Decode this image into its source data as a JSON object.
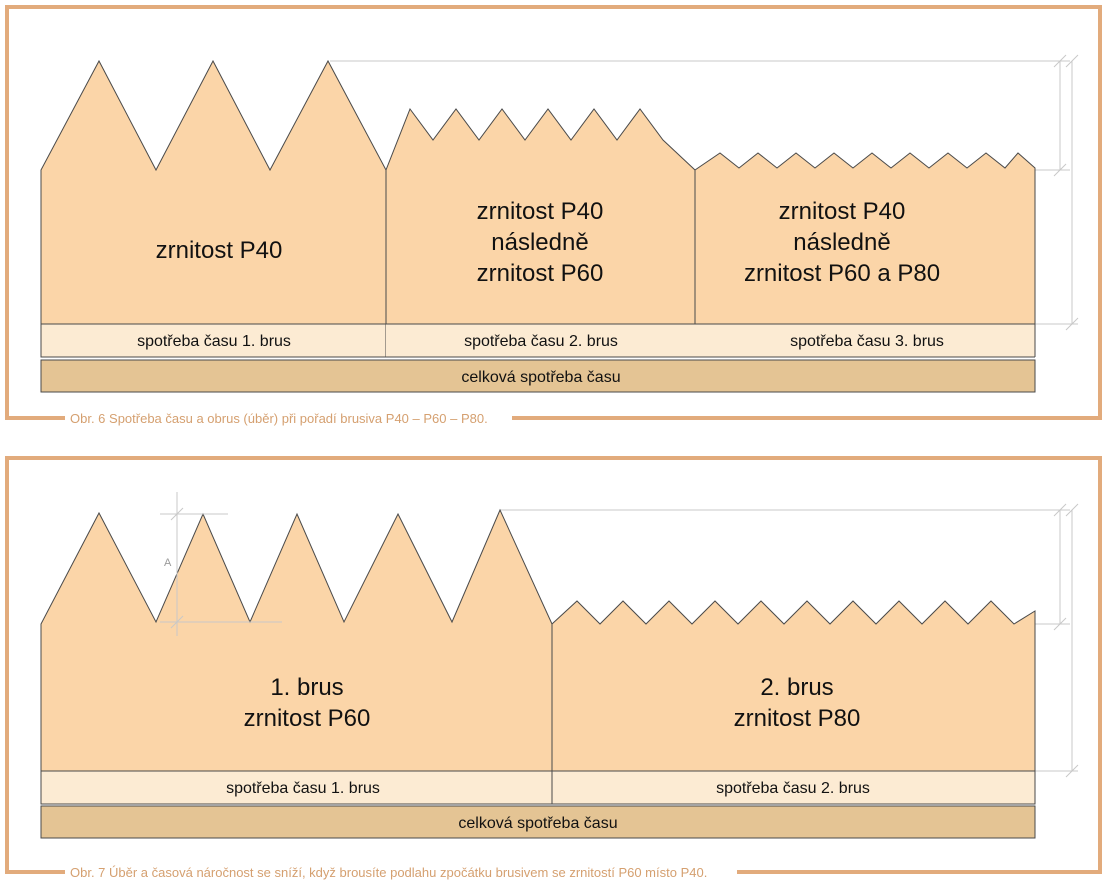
{
  "colors": {
    "frame": "#e2ab7c",
    "block": "#fbd5a8",
    "block_stroke": "#4a4a4a",
    "bar_light": "#fcebd3",
    "bar_dark": "#e4c494",
    "caption_text": "#d5a070",
    "dimension_line": "#c8c8c8"
  },
  "figure6": {
    "blocks": [
      {
        "lines": [
          "zrnitost P40"
        ]
      },
      {
        "lines": [
          "zrnitost P40",
          "následně",
          "zrnitost P60"
        ]
      },
      {
        "lines": [
          "zrnitost P40",
          "následně",
          "zrnitost P60 a P80"
        ]
      }
    ],
    "time_bars": [
      "spotřeba času 1. brus",
      "spotřeba času 2. brus",
      "spotřeba času 3. brus"
    ],
    "total_bar": "celková spotřeba času",
    "caption": "Obr. 6  Spotřeba času a obrus (úběr) při pořadí brusiva P40 – P60 – P80."
  },
  "figure7": {
    "blocks": [
      {
        "lines": [
          "1. brus",
          "zrnitost P60"
        ]
      },
      {
        "lines": [
          "2. brus",
          "zrnitost P80"
        ]
      }
    ],
    "dimension_label": "A",
    "time_bars": [
      "spotřeba času 1. brus",
      "spotřeba času 2. brus"
    ],
    "total_bar": "celková spotřeba času",
    "caption": "Obr. 7  Úběr a časová náročnost se sníží, když brousíte podlahu zpočátku brusivem se zrnitostí P60 místo P40."
  }
}
